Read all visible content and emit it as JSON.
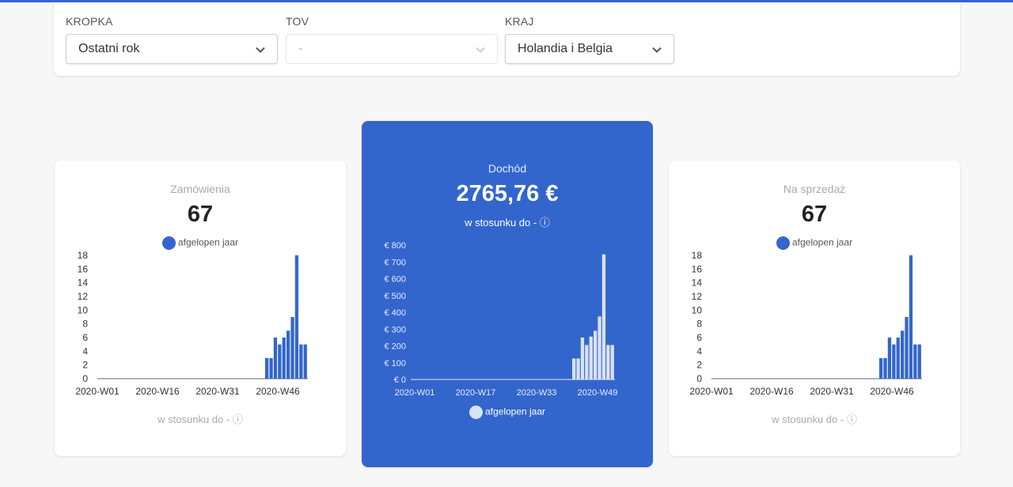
{
  "filters": {
    "period": {
      "label": "KROPKA",
      "value": "Ostatni rok"
    },
    "tov": {
      "label": "TOV",
      "value": "-"
    },
    "country": {
      "label": "KRAJ",
      "value": "Holandia i Belgia"
    }
  },
  "colors": {
    "accent": "#3366cc",
    "bar": "#3366cc",
    "bar_light": "#d9e2f3"
  },
  "cards": {
    "orders": {
      "title": "Zamówienia",
      "value": "67",
      "legend": "afgelopen jaar",
      "compare": "w stosunku do -",
      "compare_icon": "info-icon"
    },
    "revenue": {
      "title": "Dochód",
      "value": "2765,76 €",
      "legend": "afgelopen jaar",
      "compare": "w stosunku do -",
      "compare_icon": "info-icon"
    },
    "sales": {
      "title": "Na sprzedaż",
      "value": "67",
      "legend": "afgelopen jaar",
      "compare": "w stosunku do -",
      "compare_icon": "info-icon"
    }
  },
  "chart_data": [
    {
      "type": "bar",
      "series": [
        {
          "name": "afgelopen jaar",
          "values": [
            3,
            3,
            6,
            5,
            6,
            7,
            9,
            18,
            5,
            5
          ]
        }
      ],
      "x_ticks": [
        "2020-W01",
        "2020-W16",
        "2020-W31",
        "2020-W46"
      ],
      "y_ticks": [
        "0",
        "2",
        "4",
        "6",
        "8",
        "10",
        "12",
        "14",
        "16",
        "18"
      ],
      "ylim": [
        0,
        18
      ],
      "legend": "top-center"
    },
    {
      "type": "bar",
      "series": [
        {
          "name": "afgelopen jaar",
          "values": [
            125,
            125,
            250,
            205,
            255,
            290,
            375,
            745,
            205,
            205
          ]
        }
      ],
      "x_ticks": [
        "2020-W01",
        "2020-W17",
        "2020-W33",
        "2020-W49"
      ],
      "y_ticks": [
        "€ 0",
        "€ 100",
        "€ 200",
        "€ 300",
        "€ 400",
        "€ 500",
        "€ 600",
        "€ 700",
        "€ 800"
      ],
      "ylim": [
        0,
        800
      ],
      "legend": "bottom-center"
    },
    {
      "type": "bar",
      "series": [
        {
          "name": "afgelopen jaar",
          "values": [
            3,
            3,
            6,
            5,
            6,
            7,
            9,
            18,
            5,
            5
          ]
        }
      ],
      "x_ticks": [
        "2020-W01",
        "2020-W16",
        "2020-W31",
        "2020-W46"
      ],
      "y_ticks": [
        "0",
        "2",
        "4",
        "6",
        "8",
        "10",
        "12",
        "14",
        "16",
        "18"
      ],
      "ylim": [
        0,
        18
      ],
      "legend": "top-center"
    }
  ]
}
